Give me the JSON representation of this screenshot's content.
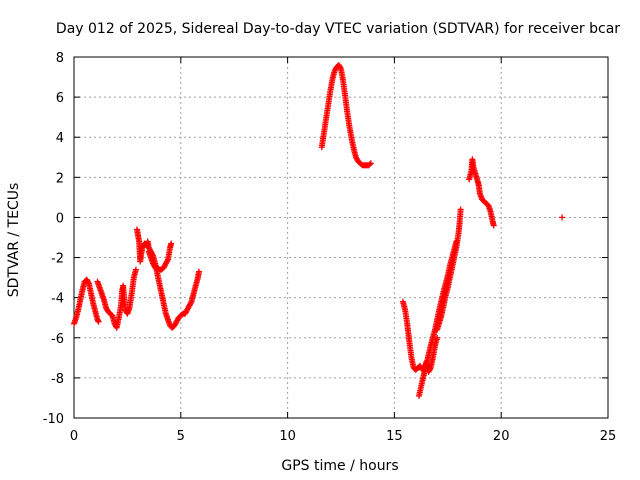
{
  "chart_data": {
    "type": "scatter",
    "title": "Day 012 of 2025, Sidereal Day-to-day VTEC variation (SDTVAR) for receiver bcar",
    "xlabel": "GPS time / hours",
    "ylabel": "SDTVAR / TECUs",
    "xlim": [
      0,
      25
    ],
    "ylim": [
      -10,
      8
    ],
    "xticks": [
      "0",
      "5",
      "10",
      "15",
      "20",
      "25"
    ],
    "yticks": [
      "-10",
      "-8",
      "-6",
      "-4",
      "-2",
      "0",
      "2",
      "4",
      "6",
      "8"
    ],
    "grid": true,
    "marker": "plus",
    "color": "#ff0000",
    "series": [
      {
        "points": [
          [
            0.0,
            -5.3
          ],
          [
            0.1,
            -5.0
          ],
          [
            0.2,
            -4.6
          ],
          [
            0.3,
            -4.1
          ],
          [
            0.4,
            -3.6
          ],
          [
            0.5,
            -3.2
          ],
          [
            0.6,
            -3.1
          ],
          [
            0.7,
            -3.3
          ],
          [
            0.8,
            -3.8
          ],
          [
            0.9,
            -4.3
          ],
          [
            1.0,
            -4.7
          ],
          [
            1.1,
            -5.1
          ],
          [
            1.15,
            -5.2
          ],
          [
            1.1,
            -3.2
          ],
          [
            1.2,
            -3.5
          ],
          [
            1.3,
            -3.8
          ],
          [
            1.4,
            -4.1
          ],
          [
            1.5,
            -4.5
          ],
          [
            1.6,
            -4.7
          ],
          [
            1.7,
            -4.8
          ],
          [
            1.8,
            -4.9
          ],
          [
            1.9,
            -5.3
          ],
          [
            2.0,
            -5.5
          ],
          [
            2.1,
            -5.0
          ],
          [
            2.2,
            -4.4
          ],
          [
            2.25,
            -3.7
          ],
          [
            2.3,
            -3.4
          ],
          [
            2.35,
            -4.0
          ],
          [
            2.4,
            -4.6
          ],
          [
            2.5,
            -4.8
          ],
          [
            2.6,
            -4.5
          ],
          [
            2.7,
            -3.8
          ],
          [
            2.8,
            -3.0
          ],
          [
            2.9,
            -2.6
          ],
          [
            2.95,
            -0.6
          ],
          [
            3.0,
            -0.9
          ],
          [
            3.05,
            -1.2
          ],
          [
            3.1,
            -2.2
          ],
          [
            3.15,
            -1.8
          ],
          [
            3.2,
            -1.5
          ],
          [
            3.3,
            -1.3
          ],
          [
            3.4,
            -1.4
          ],
          [
            3.45,
            -1.2
          ],
          [
            3.5,
            -1.5
          ],
          [
            3.6,
            -1.7
          ],
          [
            3.7,
            -1.9
          ],
          [
            3.8,
            -2.3
          ],
          [
            3.9,
            -2.8
          ],
          [
            4.0,
            -3.3
          ],
          [
            4.1,
            -3.8
          ],
          [
            4.2,
            -4.3
          ],
          [
            4.3,
            -4.8
          ],
          [
            4.4,
            -5.1
          ],
          [
            4.5,
            -5.4
          ],
          [
            4.6,
            -5.5
          ],
          [
            4.7,
            -5.4
          ],
          [
            4.8,
            -5.2
          ],
          [
            4.9,
            -5.0
          ],
          [
            5.0,
            -4.9
          ],
          [
            5.1,
            -4.8
          ],
          [
            5.2,
            -4.8
          ],
          [
            5.3,
            -4.6
          ],
          [
            5.4,
            -4.4
          ],
          [
            5.5,
            -4.2
          ],
          [
            5.6,
            -3.8
          ],
          [
            5.7,
            -3.4
          ],
          [
            5.8,
            -3.0
          ],
          [
            5.85,
            -2.7
          ],
          [
            3.5,
            -1.7
          ],
          [
            3.6,
            -2.0
          ],
          [
            3.7,
            -2.3
          ],
          [
            3.8,
            -2.5
          ],
          [
            3.9,
            -2.5
          ],
          [
            4.0,
            -2.6
          ],
          [
            4.1,
            -2.6
          ],
          [
            4.2,
            -2.5
          ],
          [
            4.3,
            -2.3
          ],
          [
            4.4,
            -2.1
          ],
          [
            4.5,
            -1.5
          ],
          [
            4.55,
            -1.3
          ],
          [
            11.6,
            3.5
          ],
          [
            11.7,
            4.2
          ],
          [
            11.8,
            4.9
          ],
          [
            11.9,
            5.6
          ],
          [
            12.0,
            6.3
          ],
          [
            12.1,
            6.9
          ],
          [
            12.2,
            7.3
          ],
          [
            12.3,
            7.5
          ],
          [
            12.4,
            7.6
          ],
          [
            12.5,
            7.4
          ],
          [
            12.6,
            6.8
          ],
          [
            12.7,
            6.0
          ],
          [
            12.8,
            5.2
          ],
          [
            12.9,
            4.5
          ],
          [
            13.0,
            3.9
          ],
          [
            13.1,
            3.4
          ],
          [
            13.2,
            3.0
          ],
          [
            13.3,
            2.8
          ],
          [
            13.4,
            2.7
          ],
          [
            13.5,
            2.6
          ],
          [
            13.6,
            2.6
          ],
          [
            13.7,
            2.6
          ],
          [
            13.8,
            2.6
          ],
          [
            13.9,
            2.7
          ],
          [
            15.4,
            -4.2
          ],
          [
            15.5,
            -4.6
          ],
          [
            15.6,
            -5.3
          ],
          [
            15.7,
            -6.2
          ],
          [
            15.8,
            -7.0
          ],
          [
            15.9,
            -7.5
          ],
          [
            16.0,
            -7.6
          ],
          [
            16.1,
            -7.5
          ],
          [
            16.2,
            -7.4
          ],
          [
            16.3,
            -7.6
          ],
          [
            16.4,
            -7.5
          ],
          [
            16.5,
            -7.2
          ],
          [
            16.6,
            -7.7
          ],
          [
            16.7,
            -7.5
          ],
          [
            16.8,
            -7.0
          ],
          [
            16.9,
            -6.4
          ],
          [
            17.0,
            -6.0
          ],
          [
            16.15,
            -8.9
          ],
          [
            16.3,
            -8.2
          ],
          [
            16.5,
            -7.3
          ],
          [
            16.7,
            -6.4
          ],
          [
            16.9,
            -5.6
          ],
          [
            17.1,
            -4.6
          ],
          [
            17.3,
            -3.7
          ],
          [
            17.5,
            -2.9
          ],
          [
            17.6,
            -2.4
          ],
          [
            17.7,
            -2.0
          ],
          [
            17.8,
            -1.6
          ],
          [
            17.9,
            -1.2
          ],
          [
            17.0,
            -5.6
          ],
          [
            17.2,
            -4.9
          ],
          [
            17.4,
            -3.9
          ],
          [
            17.5,
            -3.5
          ],
          [
            17.6,
            -3.0
          ],
          [
            17.7,
            -2.5
          ],
          [
            17.8,
            -2.0
          ],
          [
            17.9,
            -1.5
          ],
          [
            18.0,
            -0.8
          ],
          [
            18.05,
            -0.3
          ],
          [
            18.1,
            0.4
          ],
          [
            18.5,
            1.9
          ],
          [
            18.6,
            2.3
          ],
          [
            18.65,
            2.9
          ],
          [
            18.7,
            2.5
          ],
          [
            18.9,
            1.8
          ],
          [
            18.95,
            1.6
          ],
          [
            19.0,
            1.2
          ],
          [
            19.1,
            0.9
          ],
          [
            19.2,
            0.8
          ],
          [
            19.3,
            0.7
          ],
          [
            19.4,
            0.6
          ],
          [
            19.5,
            0.3
          ],
          [
            19.6,
            -0.2
          ],
          [
            19.65,
            -0.4
          ],
          [
            22.85,
            0.0
          ]
        ]
      }
    ]
  }
}
